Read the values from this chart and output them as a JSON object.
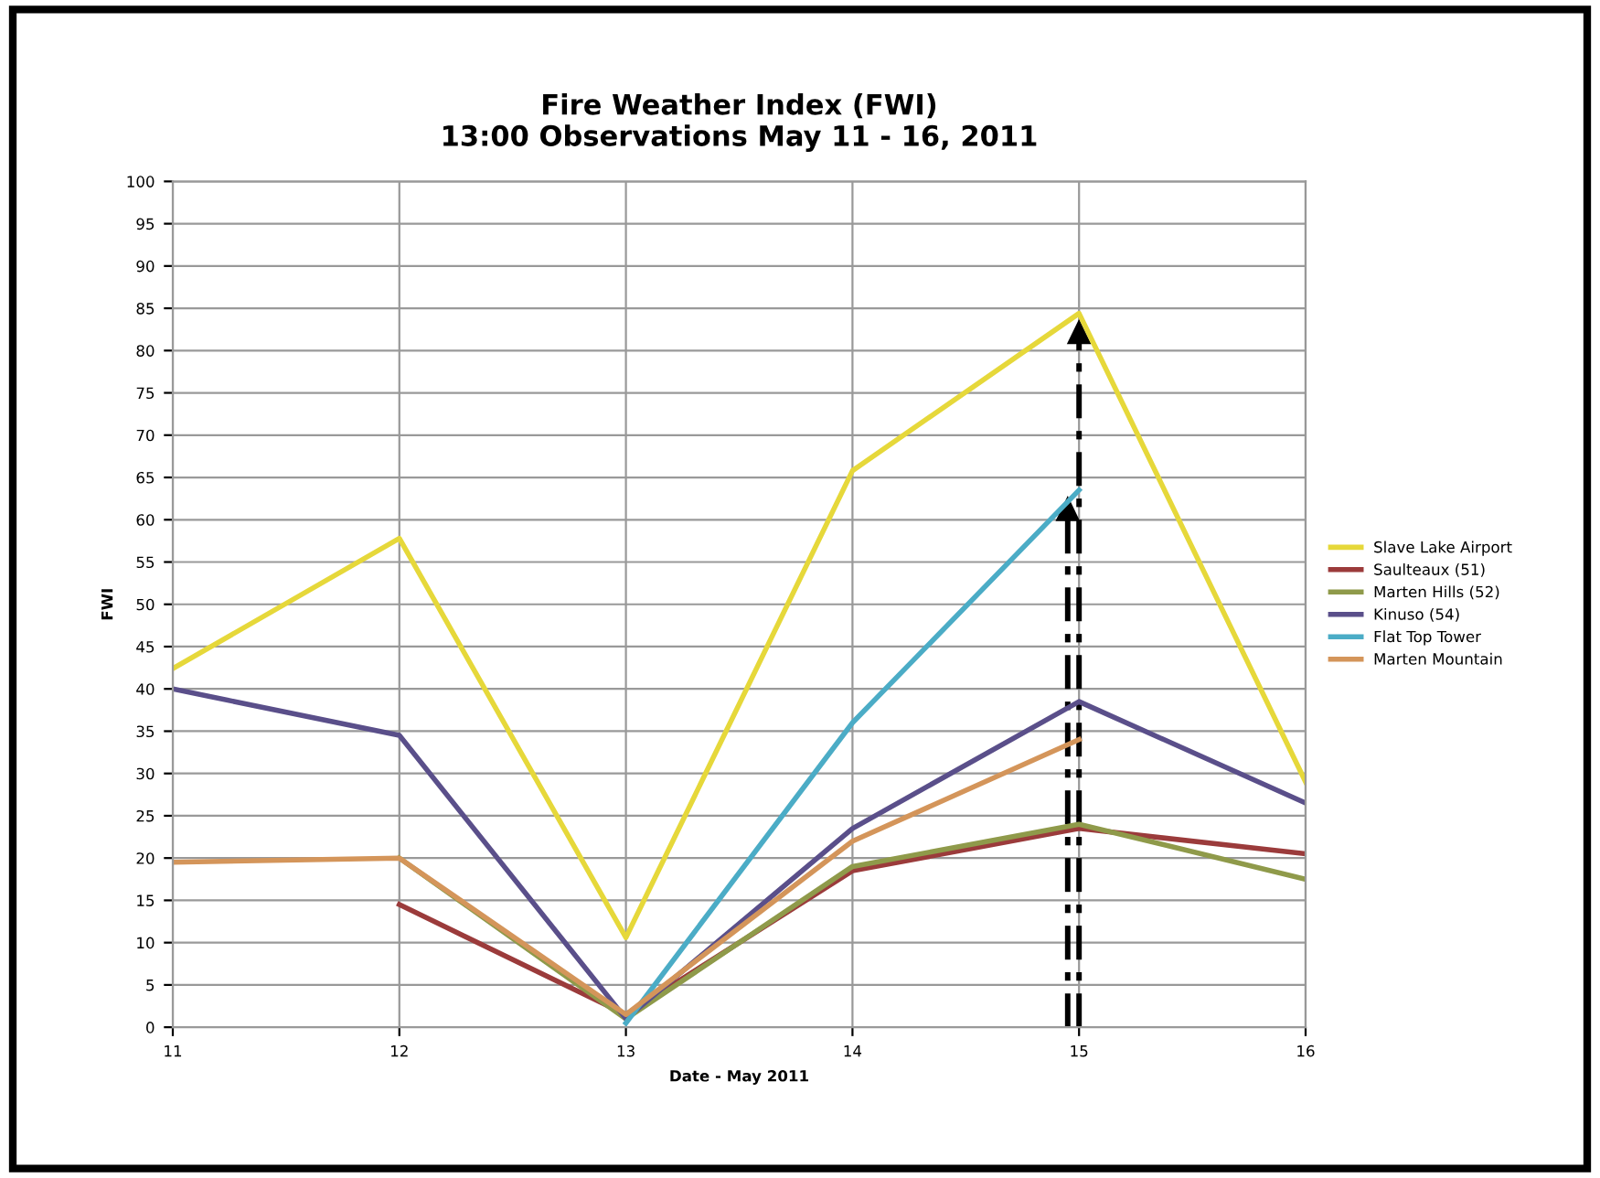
{
  "chart_data": {
    "type": "line",
    "title": "Fire Weather Index (FWI)\n13:00 Observations May 11 - 16, 2011",
    "xlabel": "Date - May 2011",
    "ylabel": "FWI",
    "x": [
      11,
      12,
      13,
      14,
      15,
      16
    ],
    "xlim": [
      11,
      16
    ],
    "xticks": [
      11,
      12,
      13,
      14,
      15,
      16
    ],
    "ylim": [
      0,
      100
    ],
    "yticks": [
      0,
      5,
      10,
      15,
      20,
      25,
      30,
      35,
      40,
      45,
      50,
      55,
      60,
      65,
      70,
      75,
      80,
      85,
      90,
      95,
      100
    ],
    "grid": true,
    "legend": "right",
    "marker": "none",
    "line_style": "solid",
    "series": [
      {
        "name": "Slave Lake Airport",
        "color": "#e6d83a",
        "values": [
          42.4,
          57.8,
          10.6,
          65.8,
          84.4,
          29
        ]
      },
      {
        "name": "Saulteaux (51)",
        "color": "#9b3b3b",
        "values": [
          null,
          14.5,
          1.5,
          18.5,
          23.5,
          20.5
        ]
      },
      {
        "name": "Marten Hills (52)",
        "color": "#8f9a4a",
        "values": [
          null,
          20,
          1,
          19,
          24,
          17.5
        ]
      },
      {
        "name": "Kinuso (54)",
        "color": "#5a4f8a",
        "values": [
          40,
          34.5,
          1,
          23.5,
          38.5,
          26.5
        ]
      },
      {
        "name": "Flat Top Tower",
        "color": "#4bacc6",
        "values": [
          null,
          null,
          0.5,
          36,
          63.5,
          null
        ]
      },
      {
        "name": "Marten Mountain",
        "color": "#d4955a",
        "values": [
          19.5,
          20,
          1.5,
          22,
          34,
          null
        ]
      }
    ]
  }
}
